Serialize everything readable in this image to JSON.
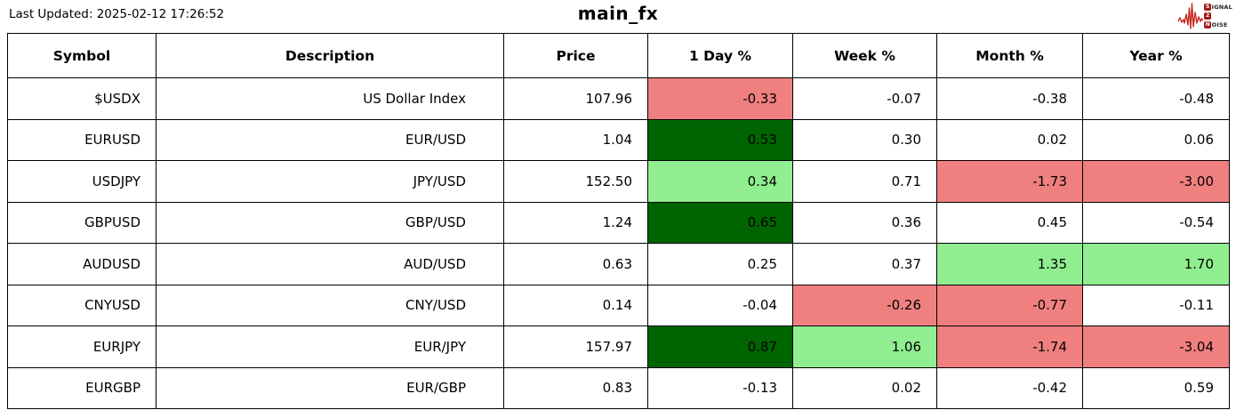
{
  "header": {
    "last_updated": "Last Updated: 2025-02-12 17:26:52",
    "title": "main_fx",
    "logo": {
      "line1_badge": "S",
      "line1_rest": "IGNAL",
      "line2_badge": "2",
      "line2_rest": "",
      "line3_badge": "N",
      "line3_rest": "OISE"
    }
  },
  "colors": {
    "logo_red": "#c5271f",
    "logo_badge_red": "#a31b15",
    "border": "#000000",
    "highlight": {
      "negative": "#f08080",
      "positive": "#90ee90",
      "strong_positive": "#006400",
      "none": "#ffffff"
    }
  },
  "chart_data": {
    "type": "table",
    "title": "main_fx",
    "columns": [
      "Symbol",
      "Description",
      "Price",
      "1 Day %",
      "Week %",
      "Month %",
      "Year %"
    ],
    "change_keys": [
      "day",
      "week",
      "month",
      "year"
    ],
    "rows": [
      {
        "symbol": "$USDX",
        "description": "US Dollar Index",
        "price": 107.96,
        "day": -0.33,
        "week": -0.07,
        "month": -0.38,
        "year": -0.48,
        "highlight": {
          "day": "negative",
          "week": "none",
          "month": "none",
          "year": "none"
        }
      },
      {
        "symbol": "EURUSD",
        "description": "EUR/USD",
        "price": 1.04,
        "day": 0.53,
        "week": 0.3,
        "month": 0.02,
        "year": 0.06,
        "highlight": {
          "day": "strong_positive",
          "week": "none",
          "month": "none",
          "year": "none"
        }
      },
      {
        "symbol": "USDJPY",
        "description": "JPY/USD",
        "price": 152.5,
        "day": 0.34,
        "week": 0.71,
        "month": -1.73,
        "year": -3.0,
        "highlight": {
          "day": "positive",
          "week": "none",
          "month": "negative",
          "year": "negative"
        }
      },
      {
        "symbol": "GBPUSD",
        "description": "GBP/USD",
        "price": 1.24,
        "day": 0.65,
        "week": 0.36,
        "month": 0.45,
        "year": -0.54,
        "highlight": {
          "day": "strong_positive",
          "week": "none",
          "month": "none",
          "year": "none"
        }
      },
      {
        "symbol": "AUDUSD",
        "description": "AUD/USD",
        "price": 0.63,
        "day": 0.25,
        "week": 0.37,
        "month": 1.35,
        "year": 1.7,
        "highlight": {
          "day": "none",
          "week": "none",
          "month": "positive",
          "year": "positive"
        }
      },
      {
        "symbol": "CNYUSD",
        "description": "CNY/USD",
        "price": 0.14,
        "day": -0.04,
        "week": -0.26,
        "month": -0.77,
        "year": -0.11,
        "highlight": {
          "day": "none",
          "week": "negative",
          "month": "negative",
          "year": "none"
        }
      },
      {
        "symbol": "EURJPY",
        "description": "EUR/JPY",
        "price": 157.97,
        "day": 0.87,
        "week": 1.06,
        "month": -1.74,
        "year": -3.04,
        "highlight": {
          "day": "strong_positive",
          "week": "positive",
          "month": "negative",
          "year": "negative"
        }
      },
      {
        "symbol": "EURGBP",
        "description": "EUR/GBP",
        "price": 0.83,
        "day": -0.13,
        "week": 0.02,
        "month": -0.42,
        "year": 0.59,
        "highlight": {
          "day": "none",
          "week": "none",
          "month": "none",
          "year": "none"
        }
      }
    ]
  }
}
